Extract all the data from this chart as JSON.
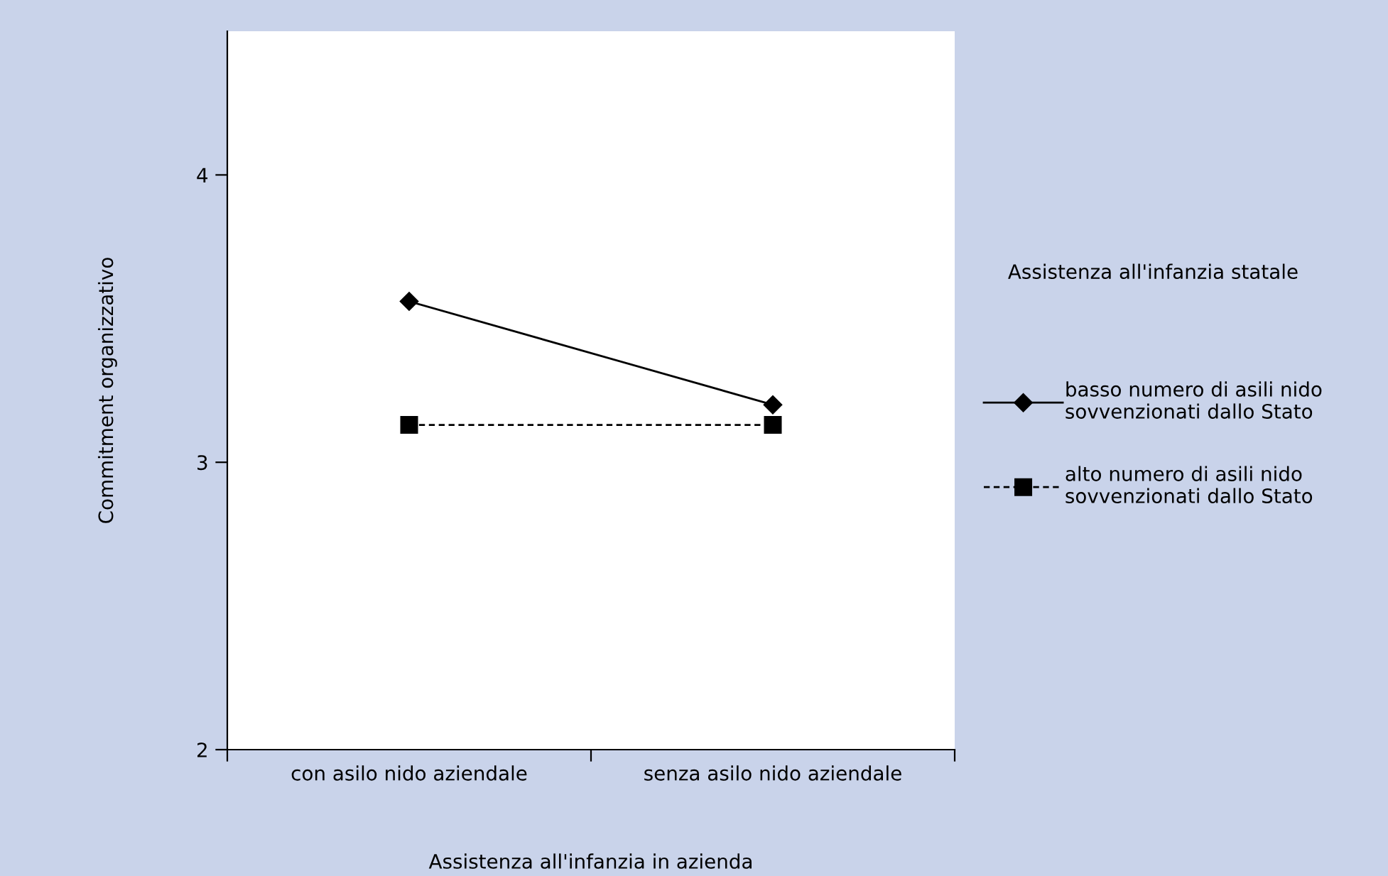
{
  "chart_data": {
    "type": "line",
    "xlabel": "Assistenza all'infanzia in azienda",
    "ylabel": "Commitment organizzativo",
    "legend_title": "Assistenza all'infanzia statale",
    "categories": [
      "con asilo nido aziendale",
      "senza asilo nido aziendale"
    ],
    "series": [
      {
        "name": "basso numero di asili nido\nsovvenzionati dallo Stato",
        "color": "#000000",
        "values": [
          3.56,
          3.2
        ],
        "marker": "diamond",
        "line_style": "solid"
      },
      {
        "name": "alto numero di asili nido\nsovvenzionati dallo Stato",
        "color": "#000000",
        "values": [
          3.13,
          3.13
        ],
        "marker": "square",
        "line_style": "dashed"
      }
    ],
    "ylim": [
      2,
      4.5
    ],
    "yticks": [
      2,
      3,
      4
    ],
    "grid": false,
    "legend": "right"
  }
}
